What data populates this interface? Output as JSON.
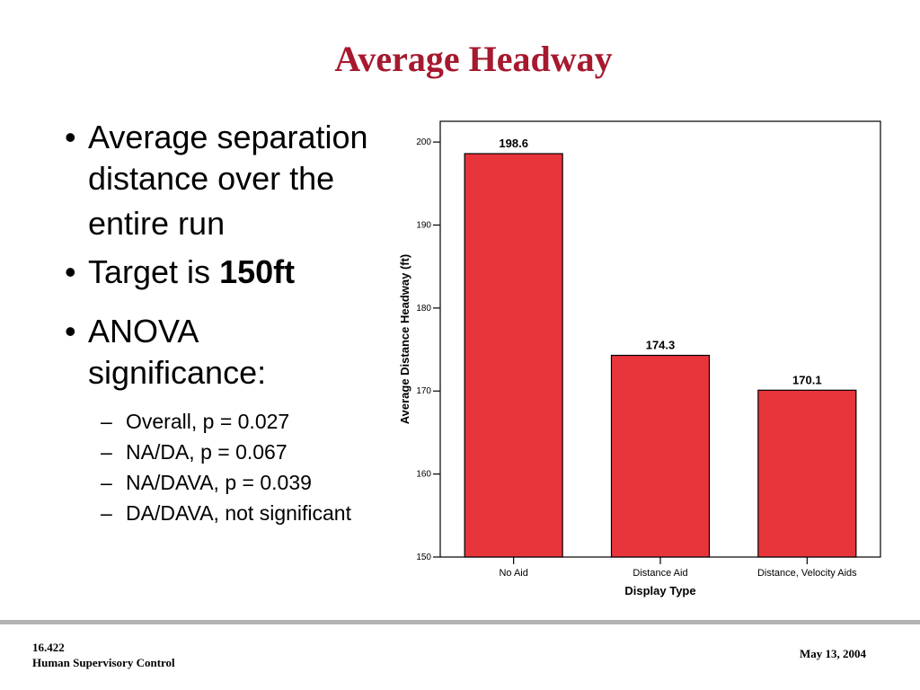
{
  "slide": {
    "title": "Average Headway",
    "title_color": "#a6192e"
  },
  "bullets": [
    {
      "marker": "•",
      "line1": "Average separation",
      "line2": "distance over the",
      "line3": "entire run"
    },
    {
      "marker": "•",
      "text": "Target is ",
      "bold": "150ft"
    },
    {
      "marker": "•",
      "line1": "ANOVA",
      "line2": "significance:"
    }
  ],
  "sub_items": [
    {
      "dash": "–",
      "text": "Overall, p = 0.027"
    },
    {
      "dash": "–",
      "text": "NA/DA, p = 0.067"
    },
    {
      "dash": "–",
      "text": "NA/DAVA, p = 0.039"
    },
    {
      "dash": "–",
      "text": "DA/DAVA, not significant"
    }
  ],
  "footer": {
    "course_number": "16.422",
    "course_name": "Human Supervisory Control",
    "date": "May 13, 2004"
  },
  "chart_data": {
    "type": "bar",
    "categories": [
      "No Aid",
      "Distance Aid",
      "Distance, Velocity Aids"
    ],
    "values": [
      198.6,
      174.3,
      170.1
    ],
    "data_labels": [
      "198.6",
      "174.3",
      "170.1"
    ],
    "xlabel": "Display Type",
    "ylabel": "Average Distance Headway (ft)",
    "ylim": [
      150,
      202.5
    ],
    "yticks": [
      150,
      160,
      170,
      180,
      190,
      200
    ],
    "bar_color": "#e8353b",
    "grid": false,
    "legend": "none"
  }
}
